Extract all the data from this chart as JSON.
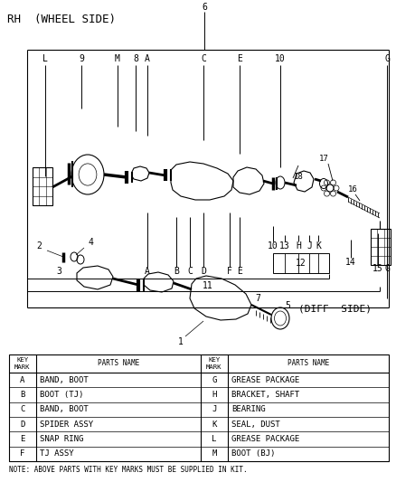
{
  "bg_color": "#ffffff",
  "line_color": "#000000",
  "title": "RH  (WHEEL SIDE)",
  "diff_side": "(DIFF  SIDE)",
  "note": "NOTE: ABOVE PARTS WITH KEY MARKS MUST BE SUPPLIED IN KIT.",
  "table_data_left": [
    [
      "A",
      "BAND, BOOT"
    ],
    [
      "B",
      "BOOT (TJ)"
    ],
    [
      "C",
      "BAND, BOOT"
    ],
    [
      "D",
      "SPIDER ASSY"
    ],
    [
      "E",
      "SNAP RING"
    ],
    [
      "F",
      "TJ ASSY"
    ]
  ],
  "table_data_right": [
    [
      "G",
      "GREASE PACKAGE"
    ],
    [
      "H",
      "BRACKET, SHAFT"
    ],
    [
      "J",
      "BEARING"
    ],
    [
      "K",
      "SEAL, DUST"
    ],
    [
      "L",
      "GREASE PACKAGE"
    ],
    [
      "M",
      "BOOT (BJ)"
    ]
  ]
}
